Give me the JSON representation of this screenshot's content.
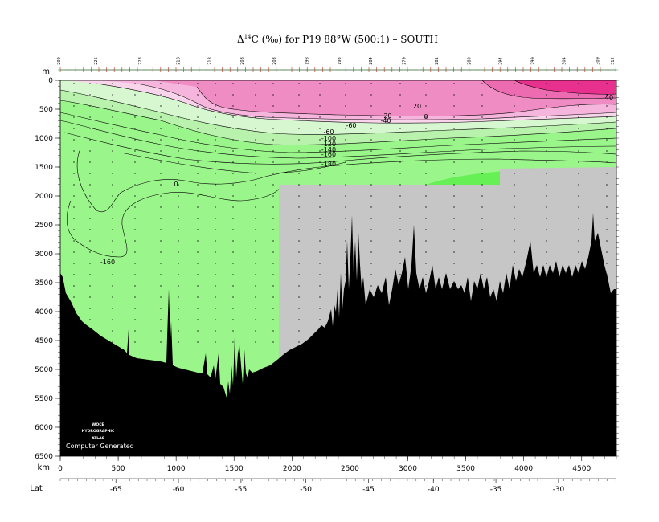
{
  "title": "Δ14C (‰) for P19 88°W (500:1) – SOUTH",
  "title_parts": {
    "delta": "Δ",
    "superscript": "14",
    "rest": "C (‰) for P19 88°W (500:1) – SOUTH"
  },
  "chart_data": {
    "type": "section-contour",
    "depth_axis": {
      "label": "m",
      "range": [
        0,
        6500
      ],
      "ticks": [
        0,
        500,
        1000,
        1500,
        2000,
        2500,
        3000,
        3500,
        4000,
        4500,
        5000,
        5500,
        6000,
        6500
      ]
    },
    "distance_axis": {
      "label": "km",
      "range": [
        0,
        4800
      ],
      "ticks": [
        0,
        500,
        1000,
        1500,
        2000,
        2500,
        3000,
        3500,
        4000,
        4500
      ]
    },
    "latitude_axis": {
      "label": "Lat",
      "ticks": [
        -65,
        -60,
        -55,
        -50,
        -45,
        -40,
        -35,
        -30
      ],
      "tick_km": [
        480,
        1020,
        1560,
        2120,
        2660,
        3220,
        3760,
        4300
      ]
    },
    "stations": [
      "209",
      "225",
      "223",
      "218",
      "213",
      "208",
      "203",
      "198",
      "193",
      "284",
      "279",
      "281",
      "289",
      "294",
      "299",
      "304",
      "309",
      "312"
    ],
    "station_km": [
      0,
      320,
      700,
      1030,
      1300,
      1580,
      1860,
      2140,
      2420,
      2690,
      2980,
      3260,
      3540,
      3810,
      4090,
      4360,
      4650,
      4780
    ],
    "contour_labels": [
      "40",
      "20",
      "0",
      "-20",
      "-40",
      "-60",
      "-60",
      "-100",
      "-120",
      "-140",
      "-160",
      "-180",
      "0",
      "-160"
    ],
    "no_data_color": "#c6c6c6",
    "bottom_color": "#000000",
    "fill_colors": {
      "gt_60": "#e8308e",
      "40_60": "#ec6bb1",
      "20_40": "#f08cc4",
      "0_20": "#f6b5dc",
      "m20_0": "#f9d5ec",
      "m60_m20": "#d6f7cf",
      "m120_m60": "#b9f2ad",
      "lt_m160": "#9af58a",
      "deep_patch": "#66f055"
    }
  },
  "logo": {
    "line1": "WOCE",
    "line2": "HYDROGRAPHIC",
    "line3": "ATLAS"
  },
  "credit": "Computer Generated"
}
